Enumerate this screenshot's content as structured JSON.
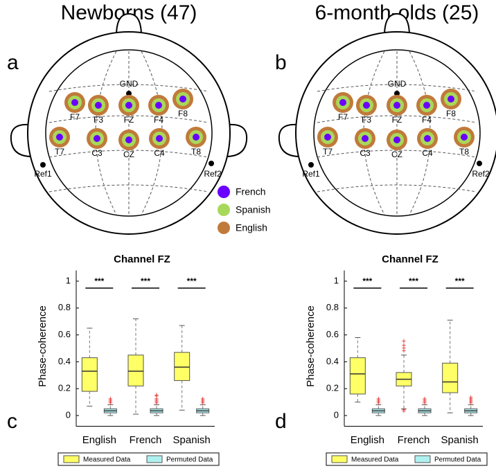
{
  "diagrams": [
    {
      "title": "Newborns (47)",
      "panel": "a",
      "electrodes": [
        "F7",
        "F3",
        "FZ",
        "F4",
        "F8",
        "T7",
        "C3",
        "CZ",
        "C4",
        "T8"
      ],
      "refs": [
        "GND",
        "Ref1",
        "Ref2"
      ]
    },
    {
      "title": "6-month-olds (25)",
      "panel": "b",
      "electrodes": [
        "F7",
        "F3",
        "FZ",
        "F4",
        "F8",
        "T7",
        "C3",
        "CZ",
        "C4",
        "T8"
      ],
      "refs": [
        "GND",
        "Ref1",
        "Ref2"
      ]
    }
  ],
  "legend": {
    "items": [
      "French",
      "Spanish",
      "English"
    ],
    "colors": [
      "#6a00ff",
      "#a8d85a",
      "#c07a3a"
    ]
  },
  "chart_data": [
    {
      "type": "box",
      "panel": "c",
      "title": "Channel FZ",
      "y_label": "Phase-coherence",
      "categories": [
        "English",
        "French",
        "Spanish"
      ],
      "annotations": [
        "***",
        "***",
        "***"
      ],
      "ylim": [
        -0.08,
        1.08
      ],
      "yticks": [
        0,
        0.2,
        0.4,
        0.6,
        0.8,
        1
      ],
      "series": [
        {
          "name": "Measured Data",
          "color": "#ffff66",
          "low": [
            0.07,
            0.01,
            0.04
          ],
          "q1": [
            0.18,
            0.22,
            0.26
          ],
          "median": [
            0.33,
            0.33,
            0.36
          ],
          "q3": [
            0.43,
            0.45,
            0.47
          ],
          "high": [
            0.65,
            0.72,
            0.67
          ],
          "outliers": [
            [],
            [],
            []
          ]
        },
        {
          "name": "Permuted Data",
          "color": "#aef0f0",
          "low": [
            0,
            0,
            0
          ],
          "q1": [
            0.02,
            0.02,
            0.02
          ],
          "median": [
            0.035,
            0.035,
            0.035
          ],
          "q3": [
            0.05,
            0.05,
            0.05
          ],
          "high": [
            0.08,
            0.08,
            0.08
          ],
          "outliers": [
            [
              0.09,
              0.1,
              0.11,
              0.12
            ],
            [
              0.09,
              0.1,
              0.11,
              0.12,
              0.14,
              0.15
            ],
            [
              0.09,
              0.1,
              0.11,
              0.12
            ]
          ]
        }
      ]
    },
    {
      "type": "box",
      "panel": "d",
      "title": "Channel FZ",
      "y_label": "Phase-coherence",
      "categories": [
        "English",
        "French",
        "Spanish"
      ],
      "annotations": [
        "***",
        "***",
        "***"
      ],
      "ylim": [
        -0.08,
        1.08
      ],
      "yticks": [
        0,
        0.2,
        0.4,
        0.6,
        0.8,
        1
      ],
      "series": [
        {
          "name": "Measured Data",
          "color": "#ffff66",
          "low": [
            0.1,
            0.05,
            0.02
          ],
          "q1": [
            0.16,
            0.22,
            0.17
          ],
          "median": [
            0.31,
            0.27,
            0.25
          ],
          "q3": [
            0.43,
            0.32,
            0.39
          ],
          "high": [
            0.58,
            0.45,
            0.71
          ],
          "outliers": [
            [],
            [
              0.03,
              0.04,
              0.48,
              0.5,
              0.52,
              0.55
            ],
            []
          ]
        },
        {
          "name": "Permuted Data",
          "color": "#aef0f0",
          "low": [
            0,
            0,
            0
          ],
          "q1": [
            0.02,
            0.02,
            0.02
          ],
          "median": [
            0.035,
            0.035,
            0.035
          ],
          "q3": [
            0.05,
            0.05,
            0.05
          ],
          "high": [
            0.08,
            0.08,
            0.08
          ],
          "outliers": [
            [
              0.09,
              0.1,
              0.11,
              0.12
            ],
            [
              0.09,
              0.1,
              0.11,
              0.12
            ],
            [
              0.09,
              0.1,
              0.11,
              0.12,
              0.13
            ]
          ]
        }
      ]
    }
  ]
}
